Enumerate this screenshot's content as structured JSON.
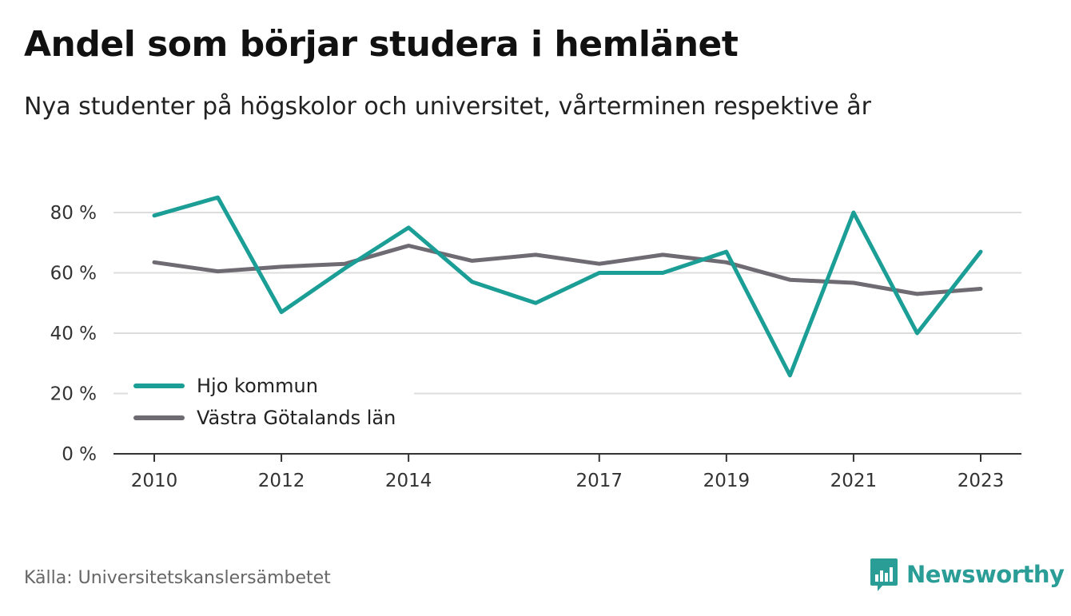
{
  "title": "Andel som börjar studera i hemlänet",
  "subtitle": "Nya studenter på högskolor och universitet, vårterminen respektive år",
  "source": "Källa: Universitetskanslersämbetet",
  "brand": {
    "name": "Newsworthy",
    "icon": "newsworthy-logo-icon",
    "color": "#2a9d96"
  },
  "chart_data": {
    "type": "line",
    "title": "Andel som börjar studera i hemlänet",
    "subtitle": "Nya studenter på högskolor och universitet, vårterminen respektive år",
    "x": [
      2010,
      2011,
      2012,
      2013,
      2014,
      2015,
      2016,
      2017,
      2018,
      2019,
      2020,
      2021,
      2022,
      2023
    ],
    "x_tick_labels": [
      "2010",
      "2012",
      "2014",
      "2017",
      "2019",
      "2021",
      "2023"
    ],
    "x_ticks": [
      2010,
      2012,
      2014,
      2017,
      2019,
      2021,
      2023
    ],
    "y_ticks": [
      0,
      20,
      40,
      60,
      80
    ],
    "y_tick_labels": [
      "0 %",
      "20 %",
      "40 %",
      "60 %",
      "80 %"
    ],
    "ylim": [
      0,
      80
    ],
    "xlim": [
      2010,
      2023
    ],
    "grid": "horizontal",
    "legend_position": "bottom-left",
    "series": [
      {
        "name": "Hjo kommun",
        "color": "#1a9e96",
        "values": [
          79,
          85,
          47,
          61.5,
          75,
          57,
          50,
          60,
          60,
          67,
          26,
          80,
          40,
          67
        ]
      },
      {
        "name": "Västra Götalands län",
        "color": "#6e6b72",
        "values": [
          63.5,
          60.5,
          62,
          63,
          69,
          64,
          66,
          63,
          66,
          63.5,
          57.7,
          56.7,
          53,
          54.7
        ]
      }
    ]
  }
}
